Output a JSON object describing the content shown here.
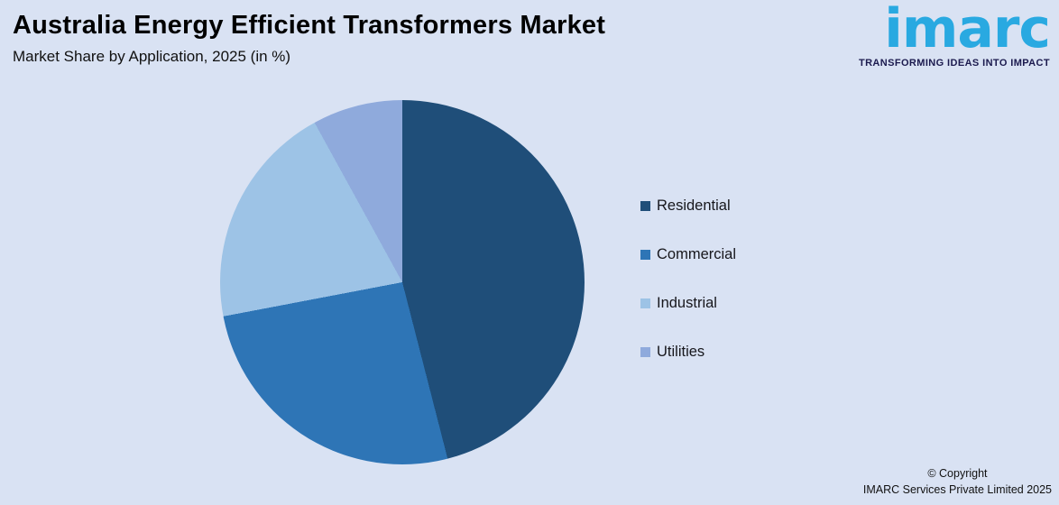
{
  "page": {
    "title": "Australia Energy Efficient Transformers Market",
    "subtitle": "Market Share by Application, 2025 (in %)",
    "background_color": "#d9e2f3"
  },
  "logo": {
    "wordmark": "imarc",
    "wordmark_color": "#29a9e1",
    "tagline": "TRANSFORMING IDEAS INTO IMPACT",
    "tagline_color": "#1b1a4e"
  },
  "chart_data": {
    "type": "pie",
    "title": "Australia Energy Efficient Transformers Market",
    "subtitle": "Market Share by Application, 2025 (in %)",
    "categories": [
      "Residential",
      "Commercial",
      "Industrial",
      "Utilities"
    ],
    "values": [
      46,
      26,
      20,
      8
    ],
    "unit": "%",
    "colors": [
      "#1f4e79",
      "#2e75b6",
      "#9dc3e6",
      "#8faadc"
    ],
    "start_angle_deg": 0,
    "direction": "clockwise",
    "legend_position": "right",
    "data_labels": false
  },
  "footer": {
    "copyright_line1": "© Copyright",
    "copyright_line2": "IMARC Services Private Limited 2025"
  }
}
